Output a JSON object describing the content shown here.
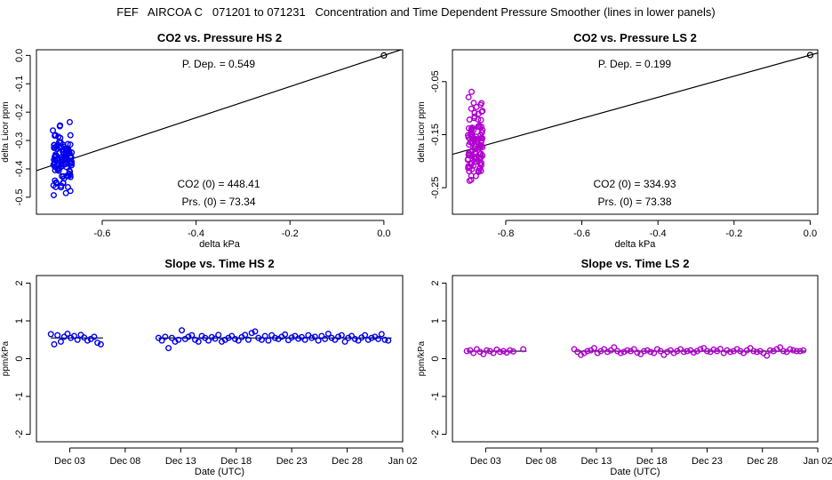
{
  "page": {
    "title": "FEF   AIRCOA C   071201 to 071231   Concentration and Time Dependent Pressure Smoother (lines in lower panels)"
  },
  "colors": {
    "hs": "#0000ee",
    "ls": "#b000d0",
    "line": "#000000"
  },
  "chart_data": [
    {
      "id": "co2-pressure-hs2",
      "type": "scatter",
      "title": "CO2 vs. Pressure HS 2",
      "xlabel": "delta kPa",
      "ylabel": "delta Licor ppm",
      "xlim": [
        -0.74,
        0.04
      ],
      "ylim": [
        -0.56,
        0.02
      ],
      "xticks": [
        -0.6,
        -0.4,
        -0.2,
        0.0
      ],
      "xtick_labels": [
        "-0.6",
        "-0.4",
        "-0.2",
        "0.0"
      ],
      "yticks": [
        0.0,
        -0.1,
        -0.2,
        -0.3,
        -0.4,
        -0.5
      ],
      "ytick_labels": [
        "0.0",
        "-0.1",
        "-0.2",
        "-0.3",
        "-0.4",
        "-0.5"
      ],
      "annotations": {
        "pdep": "P. Dep. =  0.549",
        "co2_0": "CO2 (0) =  448.41",
        "prs_0": "Prs. (0) = 73.34"
      },
      "fit_line": {
        "slope": 0.549,
        "intercept": 0.0
      },
      "reference_point": [
        0.0,
        0.0
      ],
      "series": [
        {
          "color": "hs",
          "cluster": {
            "x_range": [
              -0.705,
              -0.665
            ],
            "y_range": [
              -0.55,
              -0.19
            ],
            "n": 110
          }
        }
      ]
    },
    {
      "id": "co2-pressure-ls2",
      "type": "scatter",
      "title": "CO2 vs. Pressure LS 2",
      "xlabel": "delta kPa",
      "ylabel": "delta Licor ppm",
      "xlim": [
        -0.94,
        0.02
      ],
      "ylim": [
        -0.3,
        0.01
      ],
      "xticks": [
        -0.8,
        -0.6,
        -0.4,
        -0.2,
        0.0
      ],
      "xtick_labels": [
        "-0.8",
        "-0.6",
        "-0.4",
        "-0.2",
        "0.0"
      ],
      "yticks": [
        -0.05,
        -0.15,
        -0.25
      ],
      "ytick_labels": [
        "-0.05",
        "-0.15",
        "-0.25"
      ],
      "annotations": {
        "pdep": "P. Dep. =  0.199",
        "co2_0": "CO2 (0) =  334.93",
        "prs_0": "Prs. (0) = 73.38"
      },
      "fit_line": {
        "slope": 0.199,
        "intercept": 0.0
      },
      "reference_point": [
        0.0,
        0.0
      ],
      "series": [
        {
          "color": "ls",
          "cluster": {
            "x_range": [
              -0.9,
              -0.86
            ],
            "y_range": [
              -0.29,
              -0.04
            ],
            "n": 110
          }
        }
      ]
    },
    {
      "id": "slope-time-hs2",
      "type": "scatter",
      "title": "Slope vs. Time HS 2",
      "xlabel": "Date (UTC)",
      "ylabel": "ppm/kPa",
      "xlim": [
        0,
        33
      ],
      "ylim": [
        -2.2,
        2.2
      ],
      "xticks": [
        3,
        8,
        13,
        18,
        23,
        28,
        33
      ],
      "xtick_labels": [
        "Dec 03",
        "Dec 08",
        "Dec 13",
        "Dec 18",
        "Dec 23",
        "Dec 28",
        "Jan 02"
      ],
      "yticks": [
        2,
        1,
        0,
        -1,
        -2
      ],
      "ytick_labels": [
        "2",
        "1",
        "0",
        "-1",
        "-2"
      ],
      "smoother": {
        "y": 0.549,
        "segments": [
          [
            1.3,
            6.0
          ],
          [
            11.0,
            32.0
          ]
        ]
      },
      "series": [
        {
          "color": "hs",
          "x": [
            1.3,
            1.6,
            1.9,
            2.2,
            2.5,
            2.8,
            3.1,
            3.4,
            3.7,
            4.0,
            4.3,
            4.6,
            4.9,
            5.2,
            5.5,
            5.8,
            11.0,
            11.3,
            11.6,
            11.9,
            12.2,
            12.5,
            12.8,
            13.1,
            13.4,
            13.7,
            14.0,
            14.3,
            14.6,
            14.9,
            15.2,
            15.5,
            15.8,
            16.1,
            16.4,
            16.7,
            17.0,
            17.3,
            17.6,
            17.9,
            18.2,
            18.5,
            18.8,
            19.1,
            19.4,
            19.7,
            20.0,
            20.3,
            20.6,
            20.9,
            21.2,
            21.5,
            21.8,
            22.1,
            22.4,
            22.7,
            23.0,
            23.3,
            23.6,
            23.9,
            24.2,
            24.5,
            24.8,
            25.1,
            25.4,
            25.7,
            26.0,
            26.3,
            26.6,
            26.9,
            27.2,
            27.5,
            27.8,
            28.1,
            28.4,
            28.7,
            29.0,
            29.3,
            29.6,
            29.9,
            30.2,
            30.5,
            30.8,
            31.1,
            31.4,
            31.7
          ],
          "y": [
            0.65,
            0.38,
            0.62,
            0.45,
            0.58,
            0.66,
            0.55,
            0.6,
            0.5,
            0.63,
            0.56,
            0.48,
            0.52,
            0.58,
            0.42,
            0.38,
            0.55,
            0.48,
            0.58,
            0.28,
            0.55,
            0.45,
            0.5,
            0.75,
            0.52,
            0.58,
            0.62,
            0.5,
            0.45,
            0.6,
            0.55,
            0.48,
            0.57,
            0.53,
            0.63,
            0.45,
            0.5,
            0.55,
            0.6,
            0.52,
            0.48,
            0.57,
            0.63,
            0.5,
            0.68,
            0.72,
            0.55,
            0.5,
            0.6,
            0.48,
            0.62,
            0.55,
            0.52,
            0.58,
            0.64,
            0.49,
            0.56,
            0.6,
            0.53,
            0.57,
            0.5,
            0.62,
            0.55,
            0.58,
            0.48,
            0.6,
            0.52,
            0.66,
            0.55,
            0.5,
            0.58,
            0.62,
            0.45,
            0.55,
            0.6,
            0.52,
            0.48,
            0.56,
            0.62,
            0.5,
            0.55,
            0.58,
            0.52,
            0.65,
            0.5,
            0.48
          ]
        }
      ]
    },
    {
      "id": "slope-time-ls2",
      "type": "scatter",
      "title": "Slope vs. Time LS 2",
      "xlabel": "Date (UTC)",
      "ylabel": "ppm/kPa",
      "xlim": [
        0,
        33
      ],
      "ylim": [
        -2.2,
        2.2
      ],
      "xticks": [
        3,
        8,
        13,
        18,
        23,
        28,
        33
      ],
      "xtick_labels": [
        "Dec 03",
        "Dec 08",
        "Dec 13",
        "Dec 18",
        "Dec 23",
        "Dec 28",
        "Jan 02"
      ],
      "yticks": [
        2,
        1,
        0,
        -1,
        -2
      ],
      "ytick_labels": [
        "2",
        "1",
        "0",
        "-1",
        "-2"
      ],
      "smoother": {
        "y": 0.199,
        "segments": [
          [
            1.3,
            6.7
          ],
          [
            11.0,
            31.9
          ]
        ]
      },
      "series": [
        {
          "color": "ls",
          "x": [
            1.3,
            1.6,
            1.9,
            2.2,
            2.5,
            2.8,
            3.1,
            3.4,
            3.7,
            4.0,
            4.3,
            4.6,
            4.9,
            5.2,
            5.5,
            6.4,
            11.0,
            11.3,
            11.6,
            11.9,
            12.2,
            12.5,
            12.8,
            13.1,
            13.4,
            13.7,
            14.0,
            14.3,
            14.6,
            14.9,
            15.2,
            15.5,
            15.8,
            16.1,
            16.4,
            16.7,
            17.0,
            17.3,
            17.6,
            17.9,
            18.2,
            18.5,
            18.8,
            19.1,
            19.4,
            19.7,
            20.0,
            20.3,
            20.6,
            20.9,
            21.2,
            21.5,
            21.8,
            22.1,
            22.4,
            22.7,
            23.0,
            23.3,
            23.6,
            23.9,
            24.2,
            24.5,
            24.8,
            25.1,
            25.4,
            25.7,
            26.0,
            26.3,
            26.6,
            26.9,
            27.2,
            27.5,
            27.8,
            28.1,
            28.4,
            28.7,
            29.0,
            29.3,
            29.6,
            29.9,
            30.2,
            30.5,
            30.8,
            31.1,
            31.4,
            31.7
          ],
          "y": [
            0.2,
            0.22,
            0.15,
            0.25,
            0.18,
            0.12,
            0.22,
            0.2,
            0.15,
            0.24,
            0.18,
            0.2,
            0.16,
            0.22,
            0.19,
            0.25,
            0.25,
            0.18,
            0.1,
            0.15,
            0.2,
            0.22,
            0.28,
            0.15,
            0.2,
            0.25,
            0.18,
            0.22,
            0.3,
            0.2,
            0.15,
            0.18,
            0.22,
            0.2,
            0.25,
            0.16,
            0.12,
            0.2,
            0.22,
            0.18,
            0.15,
            0.25,
            0.2,
            0.1,
            0.18,
            0.22,
            0.15,
            0.2,
            0.25,
            0.18,
            0.2,
            0.22,
            0.16,
            0.2,
            0.25,
            0.28,
            0.2,
            0.18,
            0.24,
            0.2,
            0.26,
            0.15,
            0.22,
            0.18,
            0.2,
            0.25,
            0.2,
            0.15,
            0.22,
            0.28,
            0.2,
            0.18,
            0.2,
            0.15,
            0.08,
            0.22,
            0.2,
            0.25,
            0.3,
            0.2,
            0.18,
            0.25,
            0.22,
            0.2,
            0.2,
            0.22
          ]
        }
      ]
    }
  ]
}
